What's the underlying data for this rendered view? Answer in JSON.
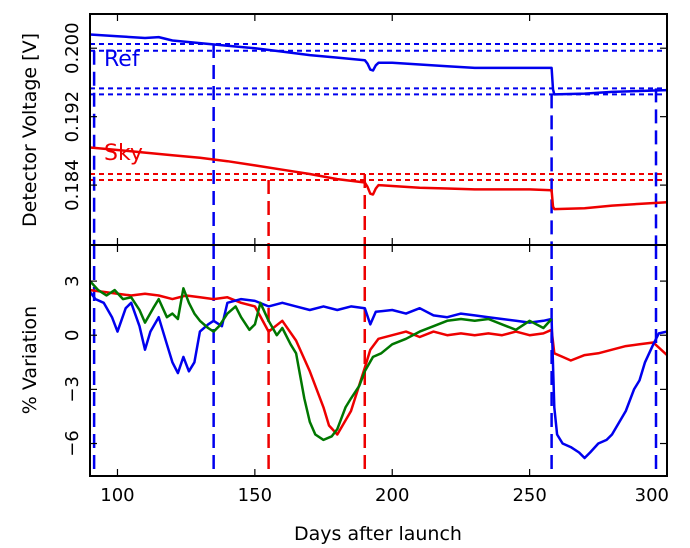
{
  "chart_data": [
    {
      "type": "line",
      "panel": "top",
      "ylabel": "Detector Voltage [V]",
      "xlim": [
        90,
        300
      ],
      "ylim": [
        0.177,
        0.204
      ],
      "yticks": [
        0.184,
        0.192,
        0.2
      ],
      "ytick_labels": [
        "0.184",
        "0.192",
        "0.200"
      ],
      "annotations": [
        {
          "text": "Ref",
          "color": "#0000ee"
        },
        {
          "text": "Sky",
          "color": "#ee0000"
        }
      ],
      "series": [
        {
          "name": "Ref",
          "color": "#0000ee",
          "points": [
            [
              90,
              0.2016
            ],
            [
              100,
              0.2014
            ],
            [
              110,
              0.2012
            ],
            [
              115,
              0.2013
            ],
            [
              120,
              0.2009
            ],
            [
              130,
              0.2006
            ],
            [
              140,
              0.2003
            ],
            [
              150,
              0.2
            ],
            [
              160,
              0.1996
            ],
            [
              170,
              0.1992
            ],
            [
              180,
              0.1989
            ],
            [
              190,
              0.1986
            ],
            [
              191,
              0.1982
            ],
            [
              192,
              0.1975
            ],
            [
              193,
              0.1974
            ],
            [
              194,
              0.198
            ],
            [
              195,
              0.1983
            ],
            [
              200,
              0.1983
            ],
            [
              210,
              0.1981
            ],
            [
              220,
              0.1979
            ],
            [
              230,
              0.1977
            ],
            [
              240,
              0.1977
            ],
            [
              250,
              0.1977
            ],
            [
              258,
              0.1977
            ],
            [
              258.5,
              0.1952
            ],
            [
              259,
              0.1946
            ],
            [
              270,
              0.1947
            ],
            [
              280,
              0.1949
            ],
            [
              290,
              0.195
            ],
            [
              300,
              0.1951
            ]
          ]
        },
        {
          "name": "Sky",
          "color": "#ee0000",
          "points": [
            [
              90,
              0.1884
            ],
            [
              100,
              0.1881
            ],
            [
              110,
              0.1878
            ],
            [
              120,
              0.1875
            ],
            [
              130,
              0.1872
            ],
            [
              140,
              0.1868
            ],
            [
              150,
              0.1863
            ],
            [
              160,
              0.1858
            ],
            [
              170,
              0.1853
            ],
            [
              180,
              0.1847
            ],
            [
              190,
              0.1843
            ],
            [
              191,
              0.1838
            ],
            [
              192,
              0.183
            ],
            [
              193,
              0.1829
            ],
            [
              194,
              0.1836
            ],
            [
              195,
              0.184
            ],
            [
              200,
              0.1839
            ],
            [
              210,
              0.1837
            ],
            [
              220,
              0.1836
            ],
            [
              230,
              0.1835
            ],
            [
              240,
              0.1835
            ],
            [
              250,
              0.1835
            ],
            [
              258,
              0.1834
            ],
            [
              258.5,
              0.1815
            ],
            [
              259,
              0.1812
            ],
            [
              270,
              0.1813
            ],
            [
              280,
              0.1816
            ],
            [
              290,
              0.1818
            ],
            [
              300,
              0.182
            ]
          ]
        }
      ],
      "hlines": [
        {
          "y": 0.2005,
          "color": "#0000ee"
        },
        {
          "y": 0.1997,
          "color": "#0000ee"
        },
        {
          "y": 0.1953,
          "color": "#0000ee"
        },
        {
          "y": 0.1946,
          "color": "#0000ee"
        },
        {
          "y": 0.1853,
          "color": "#ee0000"
        },
        {
          "y": 0.1846,
          "color": "#ee0000"
        }
      ],
      "vlines": [
        {
          "x": 91.5,
          "color": "#0000ee",
          "ymin": 0.177,
          "ymax": 0.1997
        },
        {
          "x": 135,
          "color": "#0000ee",
          "ymin": 0.177,
          "ymax": 0.2005
        },
        {
          "x": 155,
          "color": "#ee0000",
          "ymin": 0.177,
          "ymax": 0.1846
        },
        {
          "x": 190,
          "color": "#ee0000",
          "ymin": 0.177,
          "ymax": 0.1853
        },
        {
          "x": 258,
          "color": "#0000ee",
          "ymin": 0.177,
          "ymax": 0.1946
        },
        {
          "x": 296,
          "color": "#0000ee",
          "ymin": 0.177,
          "ymax": 0.1953
        }
      ]
    },
    {
      "type": "line",
      "panel": "bottom",
      "xlabel": "Days after launch",
      "ylabel": "% Variation",
      "xlim": [
        90,
        300
      ],
      "ylim": [
        -7.8,
        5.0
      ],
      "xticks": [
        100,
        150,
        200,
        250,
        300
      ],
      "yticks": [
        -6,
        -3,
        0,
        3
      ],
      "ytick_labels": [
        "−6",
        "−3",
        "0",
        "3"
      ],
      "series": [
        {
          "color": "#ee0000",
          "points": [
            [
              90,
              2.5
            ],
            [
              95,
              2.4
            ],
            [
              100,
              2.3
            ],
            [
              105,
              2.2
            ],
            [
              110,
              2.3
            ],
            [
              115,
              2.2
            ],
            [
              120,
              2.0
            ],
            [
              125,
              2.2
            ],
            [
              130,
              2.1
            ],
            [
              135,
              2.0
            ],
            [
              140,
              2.1
            ],
            [
              145,
              1.8
            ],
            [
              150,
              1.6
            ],
            [
              155,
              0.2
            ],
            [
              160,
              0.8
            ],
            [
              165,
              -0.3
            ],
            [
              170,
              -2.0
            ],
            [
              175,
              -4.0
            ],
            [
              177,
              -5.0
            ],
            [
              180,
              -5.5
            ],
            [
              185,
              -4.2
            ],
            [
              190,
              -1.8
            ],
            [
              192,
              -0.8
            ],
            [
              195,
              -0.2
            ],
            [
              200,
              0.0
            ],
            [
              205,
              0.2
            ],
            [
              210,
              -0.1
            ],
            [
              215,
              0.2
            ],
            [
              220,
              0.0
            ],
            [
              225,
              0.1
            ],
            [
              230,
              0.0
            ],
            [
              235,
              0.1
            ],
            [
              240,
              0.0
            ],
            [
              245,
              0.2
            ],
            [
              250,
              0.0
            ],
            [
              255,
              0.1
            ],
            [
              258,
              0.3
            ],
            [
              259,
              -1.0
            ],
            [
              262,
              -1.2
            ],
            [
              265,
              -1.4
            ],
            [
              270,
              -1.1
            ],
            [
              275,
              -1.0
            ],
            [
              280,
              -0.8
            ],
            [
              285,
              -0.6
            ],
            [
              290,
              -0.5
            ],
            [
              295,
              -0.4
            ],
            [
              300,
              -1.1
            ]
          ]
        },
        {
          "color": "#0000ee",
          "points": [
            [
              90,
              2.4
            ],
            [
              92,
              2.0
            ],
            [
              95,
              1.8
            ],
            [
              98,
              1.0
            ],
            [
              100,
              0.2
            ],
            [
              103,
              1.5
            ],
            [
              105,
              1.8
            ],
            [
              108,
              0.5
            ],
            [
              110,
              -0.8
            ],
            [
              112,
              0.2
            ],
            [
              115,
              1.0
            ],
            [
              118,
              -0.5
            ],
            [
              120,
              -1.5
            ],
            [
              122,
              -2.1
            ],
            [
              124,
              -1.2
            ],
            [
              126,
              -2.0
            ],
            [
              128,
              -1.5
            ],
            [
              130,
              0.2
            ],
            [
              133,
              0.6
            ],
            [
              135,
              0.8
            ],
            [
              138,
              0.5
            ],
            [
              140,
              1.8
            ],
            [
              145,
              2.0
            ],
            [
              150,
              1.9
            ],
            [
              155,
              1.6
            ],
            [
              160,
              1.8
            ],
            [
              165,
              1.6
            ],
            [
              170,
              1.4
            ],
            [
              175,
              1.6
            ],
            [
              180,
              1.4
            ],
            [
              185,
              1.6
            ],
            [
              190,
              1.5
            ],
            [
              192,
              0.6
            ],
            [
              194,
              1.3
            ],
            [
              200,
              1.4
            ],
            [
              205,
              1.2
            ],
            [
              210,
              1.5
            ],
            [
              215,
              1.1
            ],
            [
              220,
              1.0
            ],
            [
              225,
              1.2
            ],
            [
              230,
              1.1
            ],
            [
              235,
              1.0
            ],
            [
              240,
              0.9
            ],
            [
              245,
              0.8
            ],
            [
              250,
              0.7
            ],
            [
              255,
              0.8
            ],
            [
              258,
              0.9
            ],
            [
              259,
              -4.0
            ],
            [
              260,
              -5.5
            ],
            [
              262,
              -6.0
            ],
            [
              265,
              -6.2
            ],
            [
              268,
              -6.5
            ],
            [
              270,
              -6.8
            ],
            [
              272,
              -6.5
            ],
            [
              275,
              -6.0
            ],
            [
              278,
              -5.8
            ],
            [
              280,
              -5.5
            ],
            [
              285,
              -4.2
            ],
            [
              288,
              -3.0
            ],
            [
              290,
              -2.5
            ],
            [
              292,
              -1.5
            ],
            [
              295,
              -0.5
            ],
            [
              297,
              0.1
            ],
            [
              300,
              0.2
            ]
          ]
        },
        {
          "color": "#007700",
          "points": [
            [
              90,
              3.0
            ],
            [
              93,
              2.5
            ],
            [
              96,
              2.2
            ],
            [
              99,
              2.5
            ],
            [
              102,
              2.0
            ],
            [
              105,
              2.1
            ],
            [
              108,
              1.4
            ],
            [
              110,
              0.7
            ],
            [
              113,
              1.5
            ],
            [
              115,
              2.0
            ],
            [
              118,
              1.0
            ],
            [
              120,
              1.2
            ],
            [
              122,
              0.9
            ],
            [
              124,
              2.6
            ],
            [
              126,
              1.8
            ],
            [
              128,
              1.2
            ],
            [
              130,
              0.8
            ],
            [
              133,
              0.4
            ],
            [
              135,
              0.2
            ],
            [
              137,
              0.5
            ],
            [
              140,
              1.2
            ],
            [
              143,
              1.6
            ],
            [
              145,
              1.0
            ],
            [
              148,
              0.3
            ],
            [
              150,
              0.6
            ],
            [
              152,
              1.8
            ],
            [
              155,
              0.8
            ],
            [
              158,
              0.0
            ],
            [
              160,
              0.4
            ],
            [
              163,
              -0.5
            ],
            [
              165,
              -1.0
            ],
            [
              168,
              -3.5
            ],
            [
              170,
              -4.8
            ],
            [
              172,
              -5.5
            ],
            [
              175,
              -5.8
            ],
            [
              178,
              -5.6
            ],
            [
              180,
              -5.2
            ],
            [
              183,
              -4.0
            ],
            [
              185,
              -3.5
            ],
            [
              188,
              -2.8
            ],
            [
              190,
              -2.0
            ],
            [
              193,
              -1.2
            ],
            [
              196,
              -1.0
            ],
            [
              200,
              -0.5
            ],
            [
              205,
              -0.2
            ],
            [
              210,
              0.2
            ],
            [
              215,
              0.5
            ],
            [
              220,
              0.8
            ],
            [
              225,
              0.9
            ],
            [
              230,
              0.8
            ],
            [
              235,
              0.9
            ],
            [
              240,
              0.6
            ],
            [
              245,
              0.3
            ],
            [
              250,
              0.8
            ],
            [
              255,
              0.4
            ],
            [
              258,
              0.9
            ]
          ]
        }
      ],
      "vlines": [
        {
          "x": 91.5,
          "color": "#0000ee"
        },
        {
          "x": 135,
          "color": "#0000ee"
        },
        {
          "x": 155,
          "color": "#ee0000"
        },
        {
          "x": 190,
          "color": "#ee0000"
        },
        {
          "x": 258,
          "color": "#0000ee"
        },
        {
          "x": 296,
          "color": "#0000ee"
        }
      ]
    }
  ]
}
